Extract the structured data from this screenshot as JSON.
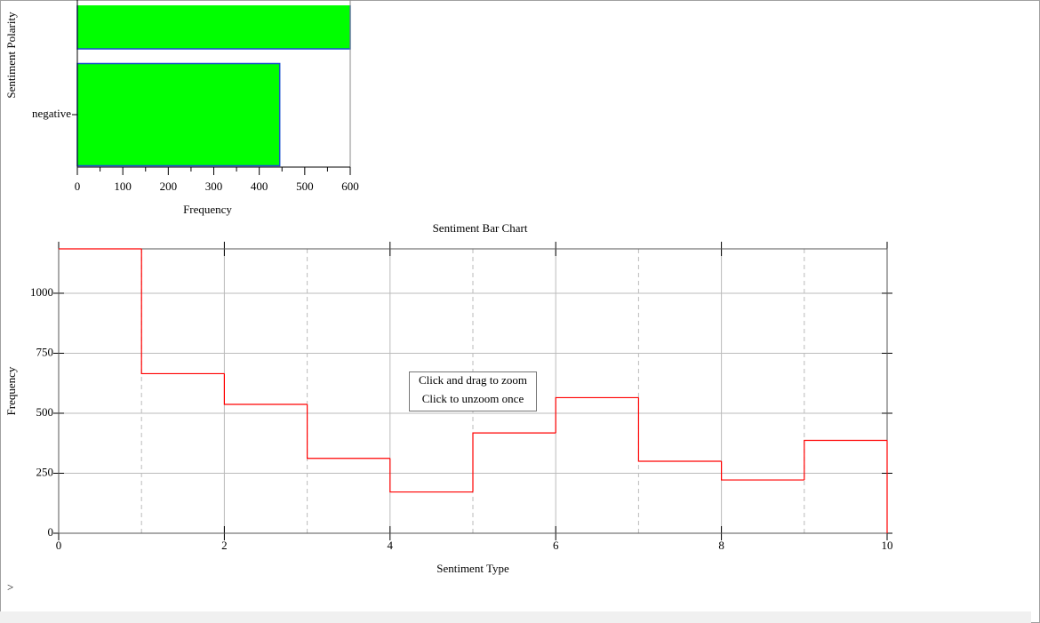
{
  "chart_data": [
    {
      "type": "hbar",
      "ylabel": "Sentiment Polarity",
      "xlabel": "Frequency",
      "categories": [
        null,
        "negative"
      ],
      "values": [
        600,
        445
      ],
      "color": "#00ff00",
      "edge_color": "#1c4fd0",
      "xlim": [
        0,
        600
      ],
      "xticks": [
        0,
        100,
        200,
        300,
        400,
        500,
        600
      ]
    },
    {
      "type": "step",
      "title": "Sentiment Bar Chart",
      "xlabel": "Sentiment Type",
      "ylabel": "Frequency",
      "x": [
        0,
        1,
        2,
        3,
        4,
        5,
        6,
        7,
        8,
        9,
        10
      ],
      "series": [
        {
          "color": "#ff0000",
          "values": [
            1185,
            665,
            537,
            312,
            172,
            418,
            565,
            300,
            222,
            387,
            0
          ]
        }
      ],
      "xlim": [
        0,
        10
      ],
      "xticks": [
        0,
        2,
        4,
        6,
        8,
        10
      ],
      "x_minor_grid": [
        1,
        3,
        5,
        7,
        9
      ],
      "ylim": [
        0,
        1185
      ],
      "yticks": [
        0,
        250,
        500,
        750,
        1000
      ],
      "grid": true,
      "annotations": [
        "Click and drag to zoom",
        "Click to unzoom once"
      ]
    }
  ],
  "prompt": ">"
}
